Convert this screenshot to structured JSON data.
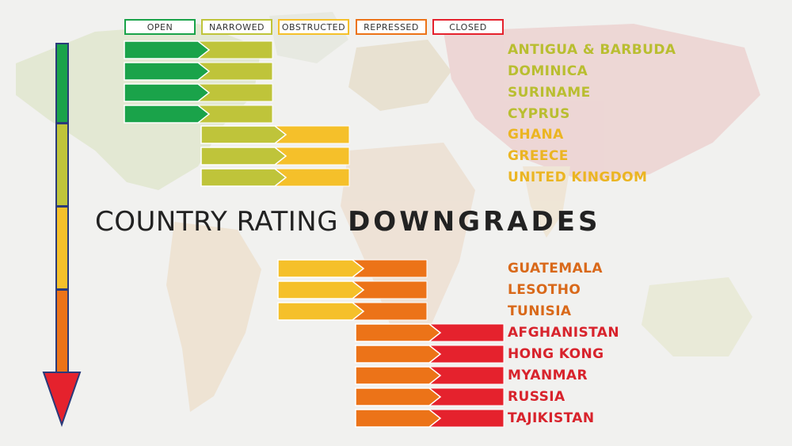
{
  "title": {
    "part1": "COUNTRY RATING",
    "part2": "DOWNGRADES"
  },
  "ratings": [
    {
      "label": "OPEN",
      "color": "#1aa34a"
    },
    {
      "label": "NARROWED",
      "color": "#bfc43a"
    },
    {
      "label": "OBSTRUCTED",
      "color": "#f5c02a"
    },
    {
      "label": "REPRESSED",
      "color": "#ec7318"
    },
    {
      "label": "CLOSED",
      "color": "#e5222d"
    }
  ],
  "downgrades": [
    {
      "country": "ANTIGUA & BARBUDA",
      "from": 0,
      "to": 1
    },
    {
      "country": "DOMINICA",
      "from": 0,
      "to": 1
    },
    {
      "country": "SURINAME",
      "from": 0,
      "to": 1
    },
    {
      "country": "CYPRUS",
      "from": 0,
      "to": 1
    },
    {
      "country": "GHANA",
      "from": 1,
      "to": 2
    },
    {
      "country": "GREECE",
      "from": 1,
      "to": 2
    },
    {
      "country": "UNITED KINGDOM",
      "from": 1,
      "to": 2
    },
    {
      "country": "GUATEMALA",
      "from": 2,
      "to": 3
    },
    {
      "country": "LESOTHO",
      "from": 2,
      "to": 3
    },
    {
      "country": "TUNISIA",
      "from": 2,
      "to": 3
    },
    {
      "country": "AFGHANISTAN",
      "from": 3,
      "to": 4
    },
    {
      "country": "HONG KONG",
      "from": 3,
      "to": 4
    },
    {
      "country": "MYANMAR",
      "from": 3,
      "to": 4
    },
    {
      "country": "RUSSIA",
      "from": 3,
      "to": 4
    },
    {
      "country": "TAJIKISTAN",
      "from": 3,
      "to": 4
    }
  ],
  "label_colors": [
    "#1aa34a",
    "#b9be30",
    "#ebb522",
    "#d9691a",
    "#d8232c"
  ]
}
